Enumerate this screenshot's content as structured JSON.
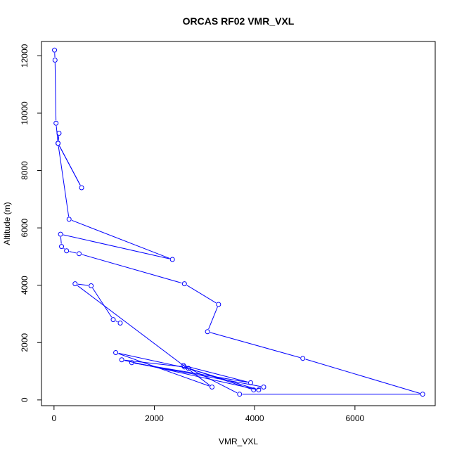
{
  "chart_data": {
    "type": "line",
    "title": "ORCAS RF02 VMR_VXL",
    "xlabel": "VMR_VXL",
    "ylabel": "Altitude (m)",
    "xlim": [
      -250,
      7600
    ],
    "ylim": [
      -200,
      12500
    ],
    "xticks": [
      0,
      2000,
      4000,
      6000
    ],
    "yticks": [
      0,
      2000,
      4000,
      6000,
      8000,
      10000,
      12000
    ],
    "grid": false,
    "legend": "none",
    "series": [
      {
        "color": "#0000ff",
        "markers": "open-circle",
        "x": [
          10,
          20,
          40,
          80,
          100,
          80,
          550,
          80,
          300,
          2360,
          130,
          150,
          250,
          500,
          2600,
          3280,
          3060,
          4960,
          7350,
          3700,
          2580,
          3920,
          1550,
          4180,
          3980,
          2600,
          1350,
          4080,
          2680,
          1230,
          3150,
          420,
          740,
          1180,
          1320
        ],
        "y": [
          12200,
          11850,
          9650,
          8950,
          9300,
          8950,
          7400,
          8950,
          6300,
          4900,
          5780,
          5350,
          5200,
          5100,
          4050,
          3330,
          2380,
          1450,
          200,
          200,
          1200,
          600,
          1300,
          450,
          350,
          1150,
          1400,
          350,
          1100,
          1650,
          450,
          4050,
          3980,
          2800,
          2680
        ]
      }
    ]
  }
}
